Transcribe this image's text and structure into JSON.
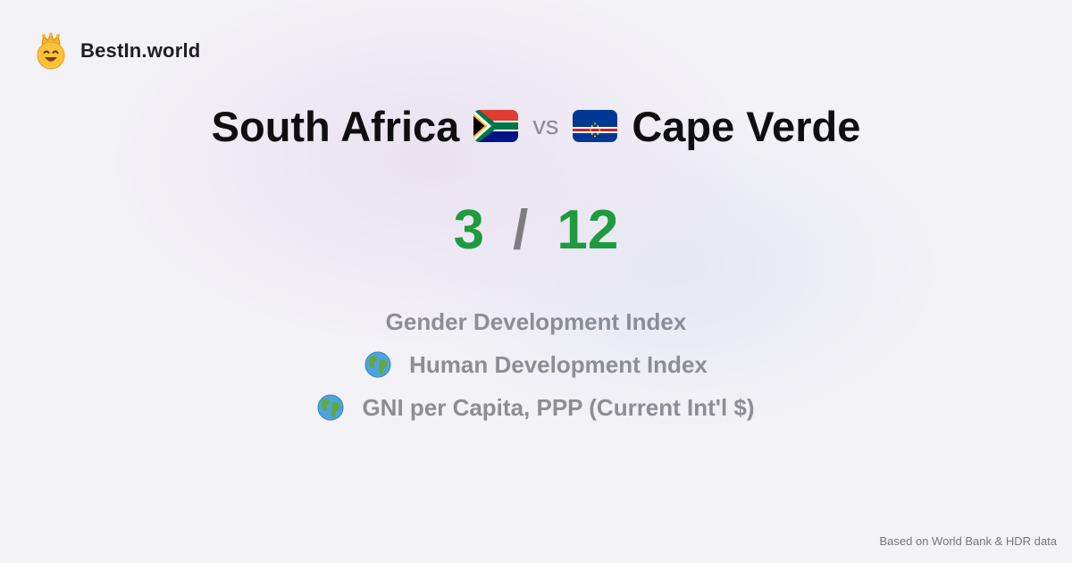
{
  "brand": {
    "name": "BestIn.world",
    "icon": "crown-smiley-icon"
  },
  "comparison": {
    "left": {
      "name": "South Africa",
      "flag": "south-africa-flag-icon"
    },
    "vs_label": "vs",
    "right": {
      "name": "Cape Verde",
      "flag": "cape-verde-flag-icon"
    }
  },
  "score": {
    "left": "3",
    "separator": "/",
    "right": "12",
    "color": "#1f9a3e"
  },
  "metrics": [
    {
      "label": "Gender Development Index",
      "icon": ""
    },
    {
      "label": "Human Development Index",
      "icon": "globe-icon"
    },
    {
      "label": "GNI per Capita, PPP (Current Int'l $)",
      "icon": "globe-icon"
    }
  ],
  "footer": {
    "source": "Based on World Bank & HDR data"
  }
}
